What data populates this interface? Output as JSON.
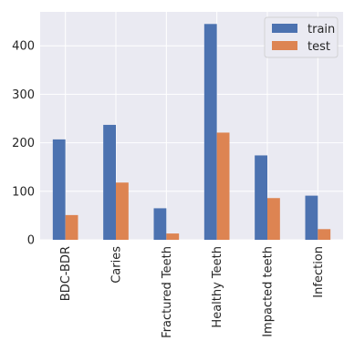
{
  "chart_data": {
    "type": "bar",
    "categories": [
      "BDC-BDR",
      "Caries",
      "Fractured Teeth",
      "Healthy Teeth",
      "Impacted teeth",
      "Infection"
    ],
    "series": [
      {
        "name": "train",
        "color": "#4c72b0",
        "values": [
          207,
          237,
          65,
          445,
          174,
          91
        ]
      },
      {
        "name": "test",
        "color": "#dd8452",
        "values": [
          51,
          118,
          13,
          221,
          86,
          22
        ]
      }
    ],
    "ylim": [
      0,
      470
    ],
    "yticks": [
      0,
      100,
      200,
      300,
      400
    ],
    "grid": true,
    "background": "#eaeaf2",
    "legend_position": "top-right"
  }
}
